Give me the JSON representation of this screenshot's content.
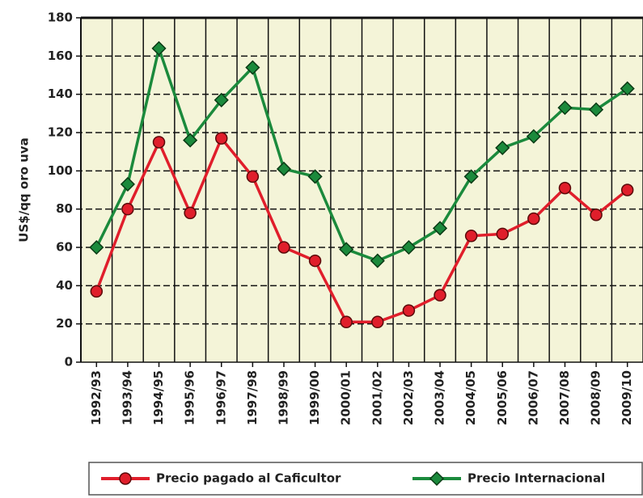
{
  "chart_data": {
    "type": "line",
    "y_label": "US$/qq oro uva",
    "categories": [
      "1992/93",
      "1993/94",
      "1994/95",
      "1995/96",
      "1996/97",
      "1997/98",
      "1998/99",
      "1999/00",
      "2000/01",
      "2001/02",
      "2002/03",
      "2003/04",
      "2004/05",
      "2005/06",
      "2006/07",
      "2007/08",
      "2008/09",
      "2009/10"
    ],
    "series": [
      {
        "name": "Precio pagado al Caficultor",
        "color": "#e01e2b",
        "marker": "circle",
        "values": [
          37,
          80,
          115,
          78,
          117,
          97,
          60,
          53,
          21,
          21,
          27,
          35,
          66,
          67,
          75,
          91,
          77,
          90
        ]
      },
      {
        "name": "Precio Internacional",
        "color": "#1b8a3c",
        "marker": "diamond",
        "values": [
          60,
          93,
          164,
          116,
          137,
          154,
          101,
          97,
          59,
          53,
          60,
          70,
          97,
          112,
          118,
          133,
          132,
          143
        ]
      }
    ],
    "ylim": [
      0,
      180
    ],
    "yticks": [
      0,
      20,
      40,
      60,
      80,
      100,
      120,
      140,
      160,
      180
    ],
    "grid": true
  }
}
